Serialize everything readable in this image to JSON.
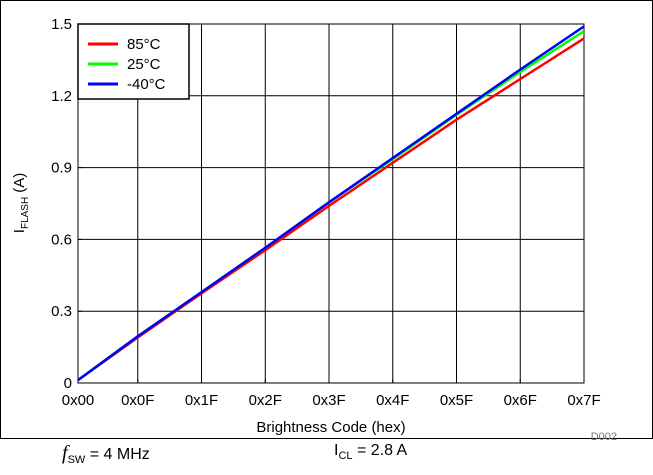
{
  "chart_data": {
    "type": "line",
    "xlabel": "Brightness Code (hex)",
    "ylabel_main": "I",
    "ylabel_sub": "FLASH",
    "ylabel_unit": "(A)",
    "x_ticks": [
      "0x00",
      "0x0F",
      "0x1F",
      "0x2F",
      "0x3F",
      "0x4F",
      "0x5F",
      "0x6F",
      "0x7F"
    ],
    "x_tick_values": [
      0,
      15,
      31,
      47,
      63,
      79,
      95,
      111,
      127
    ],
    "xlim": [
      0,
      127
    ],
    "y_ticks": [
      "0",
      "0.3",
      "0.6",
      "0.9",
      "1.2",
      "1.5"
    ],
    "y_tick_values": [
      0,
      0.3,
      0.6,
      0.9,
      1.2,
      1.5
    ],
    "ylim": [
      0,
      1.5
    ],
    "grid": true,
    "legend_position": "top-left",
    "series": [
      {
        "name": "85°C",
        "color": "#ff0000",
        "x": [
          0,
          15,
          31,
          47,
          63,
          79,
          95,
          111,
          127
        ],
        "values": [
          0.012,
          0.19,
          0.375,
          0.555,
          0.74,
          0.92,
          1.1,
          1.27,
          1.44
        ]
      },
      {
        "name": "25°C",
        "color": "#00ff00",
        "x": [
          0,
          15,
          31,
          47,
          63,
          79,
          95,
          111,
          127
        ],
        "values": [
          0.012,
          0.195,
          0.38,
          0.565,
          0.755,
          0.935,
          1.12,
          1.3,
          1.47
        ]
      },
      {
        "name": "-40°C",
        "color": "#0000ff",
        "x": [
          0,
          15,
          31,
          47,
          63,
          79,
          95,
          111,
          127
        ],
        "values": [
          0.012,
          0.195,
          0.38,
          0.565,
          0.755,
          0.94,
          1.125,
          1.31,
          1.49
        ]
      }
    ],
    "figure_id": "D002"
  },
  "conditions": {
    "fsw_label": "SW",
    "fsw_value": " = 4 MHz",
    "icl_label": "I",
    "icl_sub": "CL",
    "icl_value": " = 2.8 A"
  }
}
